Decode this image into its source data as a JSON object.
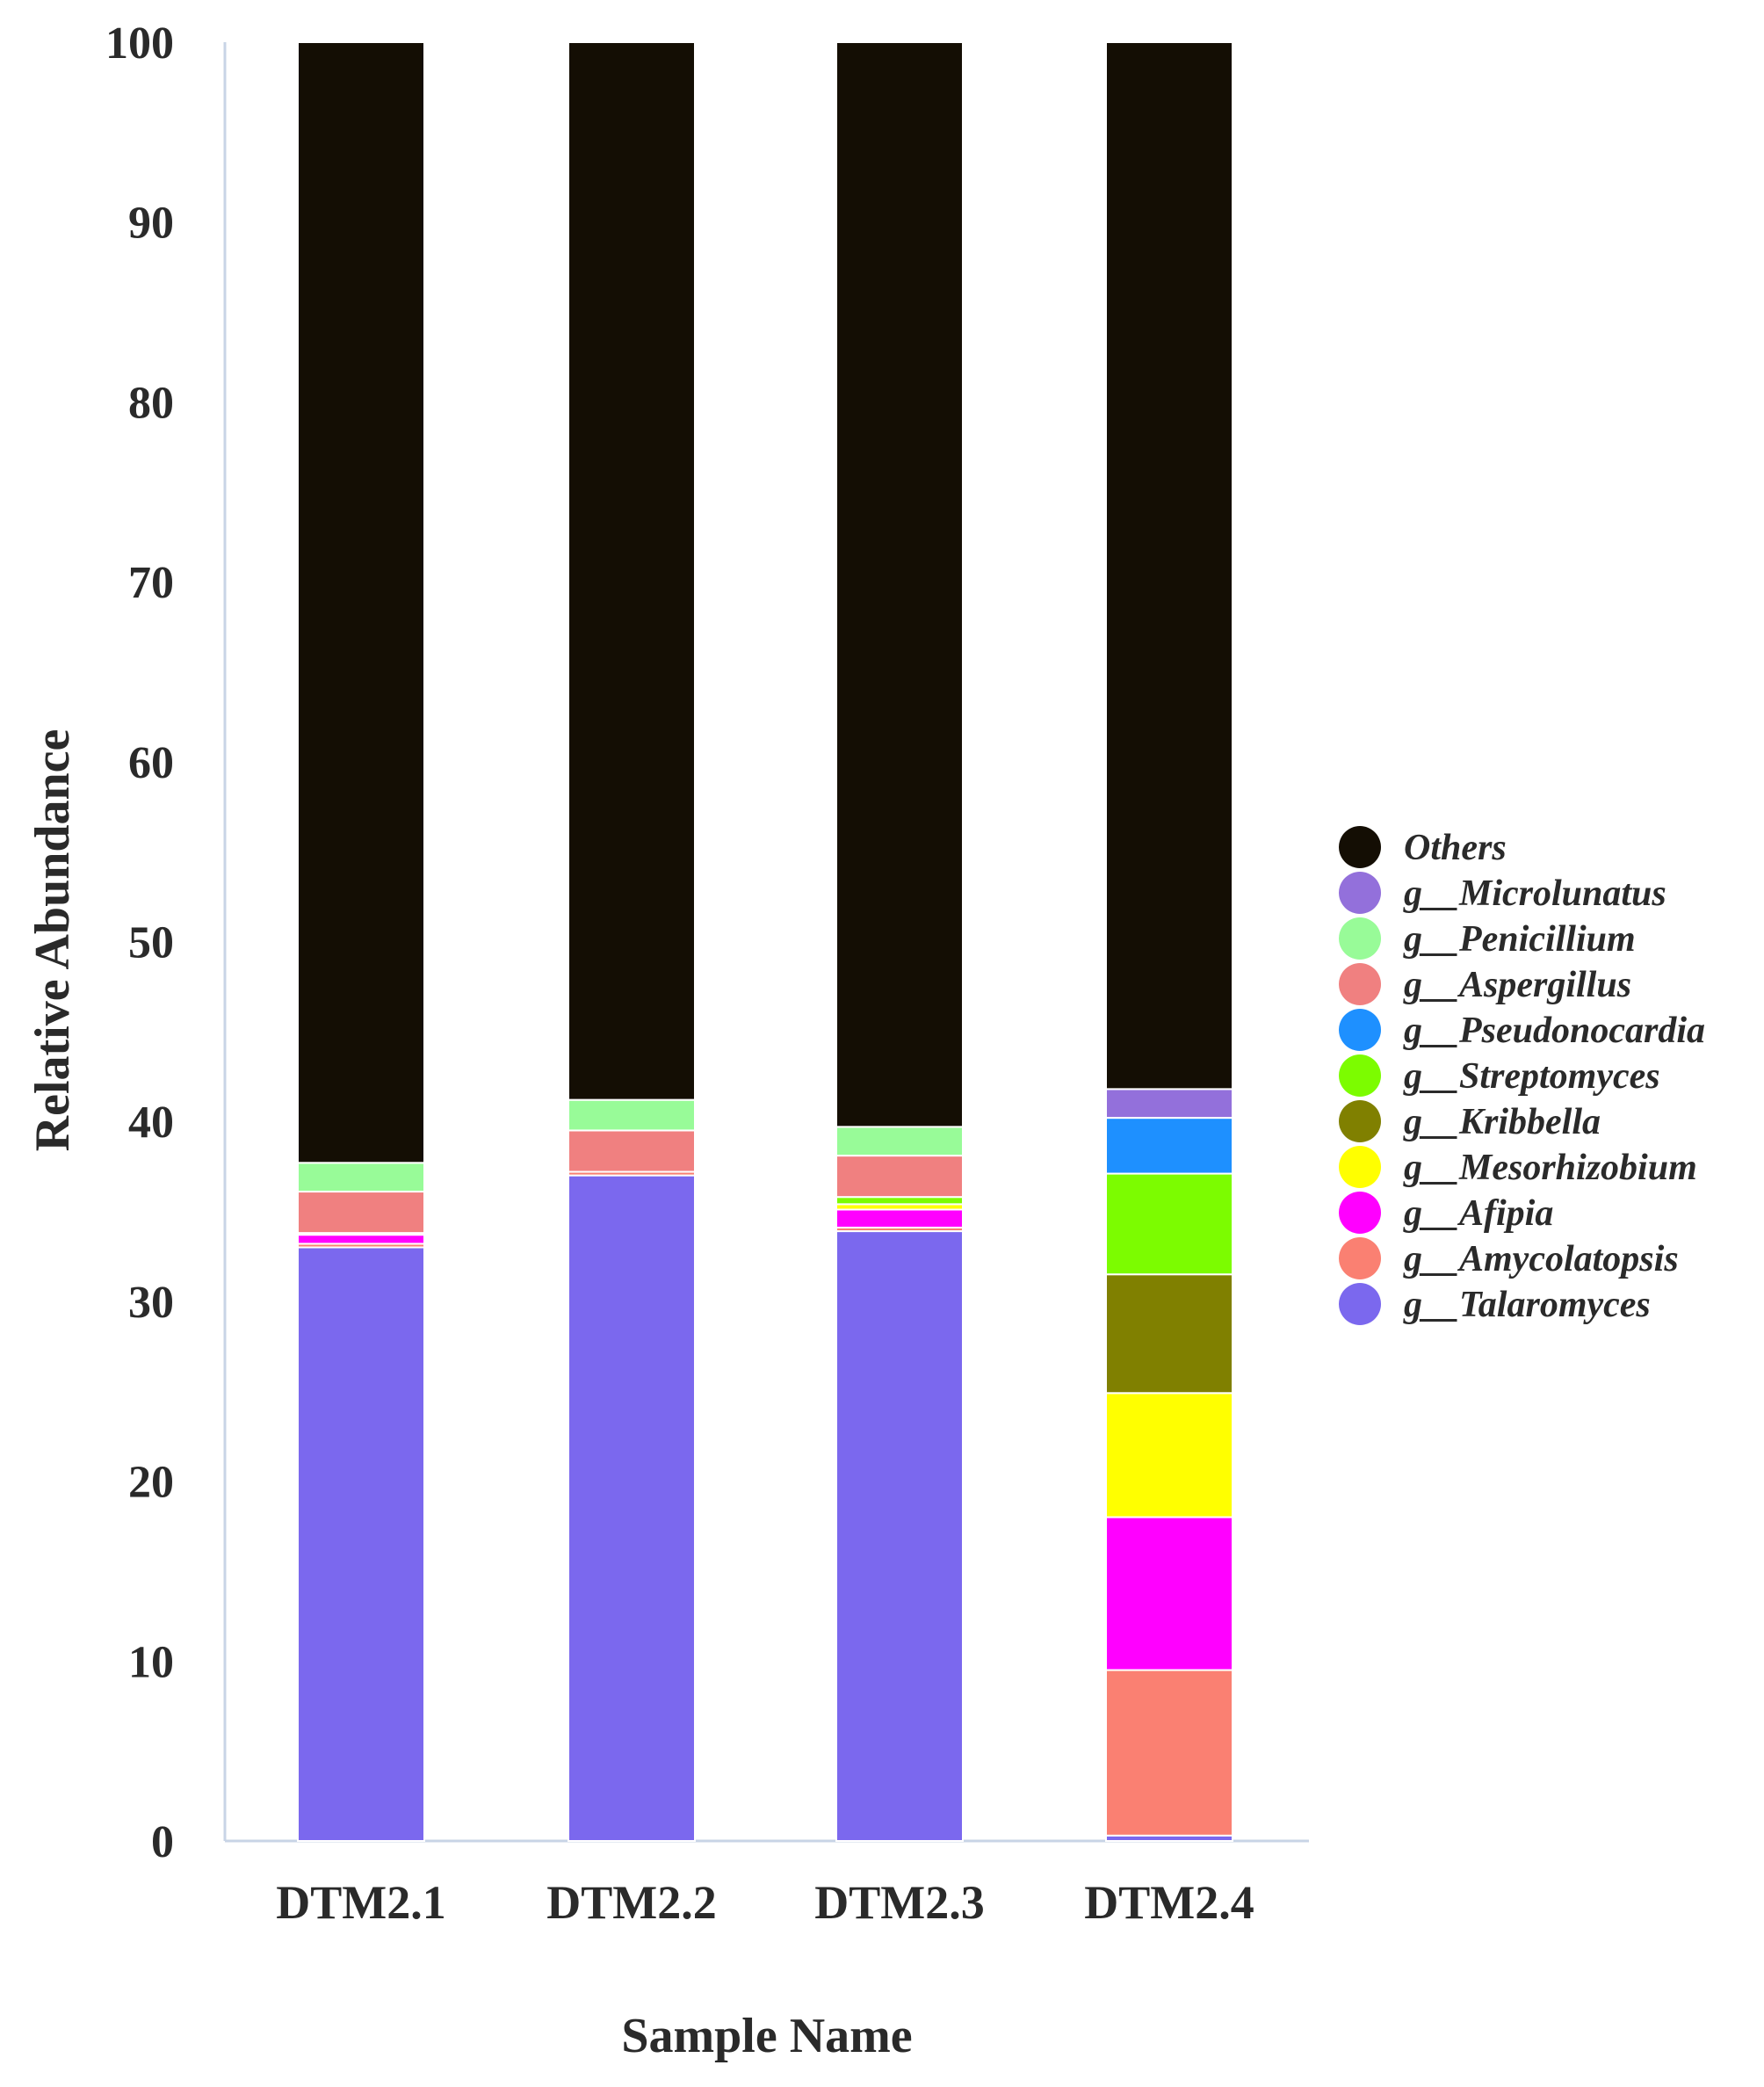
{
  "chart_data": {
    "type": "bar",
    "stacked": true,
    "title": "",
    "xlabel": "Sample Name",
    "ylabel": "Relative Abundance",
    "ylim": [
      0,
      100
    ],
    "yticks": [
      "0",
      "10",
      "20",
      "30",
      "40",
      "50",
      "60",
      "70",
      "80",
      "90",
      "100"
    ],
    "categories": [
      "DTM2.1",
      "DTM2.2",
      "DTM2.3",
      "DTM2.4"
    ],
    "legend_position": "right",
    "series": [
      {
        "name": "g__Talaromyces",
        "color": "#7b68ee",
        "values": [
          33.0,
          37.0,
          33.9,
          0.3
        ]
      },
      {
        "name": "g__Amycolatopsis",
        "color": "#fa8072",
        "values": [
          0.2,
          0.2,
          0.2,
          9.2
        ]
      },
      {
        "name": "g__Afipia",
        "color": "#ff00ff",
        "values": [
          0.5,
          0.0,
          1.0,
          8.5
        ]
      },
      {
        "name": "g__Mesorhizobium",
        "color": "#ffff00",
        "values": [
          0.1,
          0.0,
          0.3,
          6.9
        ]
      },
      {
        "name": "g__Kribbella",
        "color": "#808000",
        "values": [
          0.0,
          0.0,
          0.0,
          6.6
        ]
      },
      {
        "name": "g__Streptomyces",
        "color": "#7cfc00",
        "values": [
          0.0,
          0.0,
          0.4,
          5.6
        ]
      },
      {
        "name": "g__Pseudonocardia",
        "color": "#1e90ff",
        "values": [
          0.0,
          0.0,
          0.0,
          3.1
        ]
      },
      {
        "name": "g__Aspergillus",
        "color": "#f08080",
        "values": [
          2.3,
          2.3,
          2.3,
          0.0
        ]
      },
      {
        "name": "g__Penicillium",
        "color": "#98fb98",
        "values": [
          1.6,
          1.7,
          1.6,
          0.0
        ]
      },
      {
        "name": "g__Microlunatus",
        "color": "#9370db",
        "values": [
          0.0,
          0.0,
          0.0,
          1.6
        ]
      },
      {
        "name": "Others",
        "color": "#140e04",
        "values": [
          62.3,
          58.8,
          60.3,
          58.2
        ]
      }
    ],
    "legend_order": [
      "Others",
      "g__Microlunatus",
      "g__Penicillium",
      "g__Aspergillus",
      "g__Pseudonocardia",
      "g__Streptomyces",
      "g__Kribbella",
      "g__Mesorhizobium",
      "g__Afipia",
      "g__Amycolatopsis",
      "g__Talaromyces"
    ]
  }
}
